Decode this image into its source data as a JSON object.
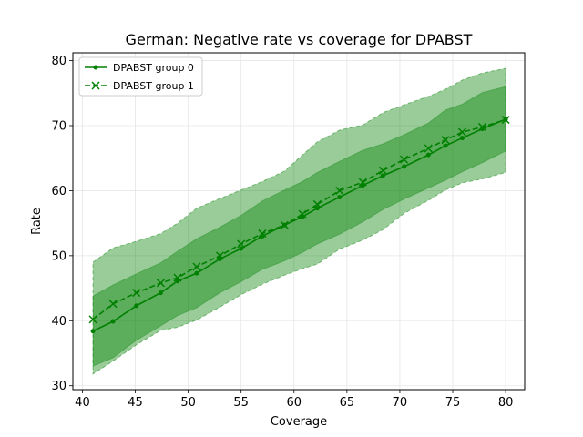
{
  "chart_data": {
    "type": "line",
    "title": "German: Negative rate vs coverage for DPABST",
    "xlabel": "Coverage",
    "ylabel": "Rate",
    "xlim": [
      39.1,
      81.8
    ],
    "ylim": [
      29.4,
      81.2
    ],
    "xticks": [
      40,
      45,
      50,
      55,
      60,
      65,
      70,
      75,
      80
    ],
    "yticks": [
      30,
      40,
      50,
      60,
      70,
      80
    ],
    "grid": true,
    "legend_position": "top-left",
    "color": "#008000",
    "series": [
      {
        "name": "DPABST group 0",
        "style": "solid",
        "marker": "dot",
        "x": [
          41.0,
          42.9,
          45.1,
          47.4,
          49.0,
          50.8,
          53.0,
          55.0,
          57.0,
          59.1,
          60.8,
          62.2,
          64.3,
          66.5,
          68.4,
          70.4,
          72.7,
          74.3,
          75.9,
          77.8,
          80.0
        ],
        "y": [
          38.4,
          39.9,
          42.3,
          44.3,
          46.1,
          47.3,
          49.5,
          51.1,
          53.0,
          54.7,
          56.0,
          57.3,
          59.0,
          60.8,
          62.3,
          63.7,
          65.5,
          66.9,
          68.1,
          69.5,
          71.0
        ],
        "band_inner_upper": [
          43.8,
          45.5,
          47.2,
          48.9,
          50.7,
          52.6,
          54.4,
          56.2,
          58.4,
          60.1,
          61.4,
          62.8,
          64.5,
          66.2,
          67.2,
          68.6,
          70.4,
          72.4,
          73.3,
          75.1,
          76.0
        ],
        "band_inner_lower": [
          33.0,
          34.3,
          37.0,
          39.2,
          40.8,
          42.0,
          44.3,
          46.0,
          47.9,
          49.2,
          50.5,
          51.8,
          53.3,
          55.2,
          57.1,
          58.7,
          60.4,
          61.6,
          62.9,
          64.3,
          66.1
        ]
      },
      {
        "name": "DPABST group 1",
        "style": "dashed",
        "marker": "x",
        "x": [
          41.0,
          42.9,
          45.1,
          47.4,
          49.0,
          50.8,
          53.0,
          55.0,
          57.0,
          59.1,
          60.8,
          62.2,
          64.3,
          66.5,
          68.4,
          70.4,
          72.7,
          74.3,
          75.9,
          77.8,
          80.0
        ],
        "y": [
          40.2,
          42.6,
          44.3,
          45.8,
          46.6,
          48.3,
          50.0,
          51.8,
          53.4,
          54.7,
          56.4,
          57.9,
          60.0,
          61.3,
          63.1,
          64.8,
          66.5,
          67.8,
          69.0,
          69.8,
          70.9
        ],
        "band_outer_upper": [
          49.0,
          51.2,
          52.2,
          53.4,
          55.0,
          57.3,
          58.8,
          60.1,
          61.4,
          63.0,
          65.5,
          67.5,
          69.3,
          70.1,
          72.0,
          73.2,
          74.5,
          75.6,
          77.0,
          78.1,
          78.8
        ],
        "band_outer_lower": [
          31.8,
          33.8,
          36.3,
          38.5,
          39.0,
          40.1,
          42.1,
          44.0,
          45.6,
          47.0,
          48.0,
          48.7,
          51.0,
          52.4,
          54.0,
          56.5,
          58.5,
          60.1,
          61.2,
          61.8,
          62.8
        ]
      }
    ]
  }
}
